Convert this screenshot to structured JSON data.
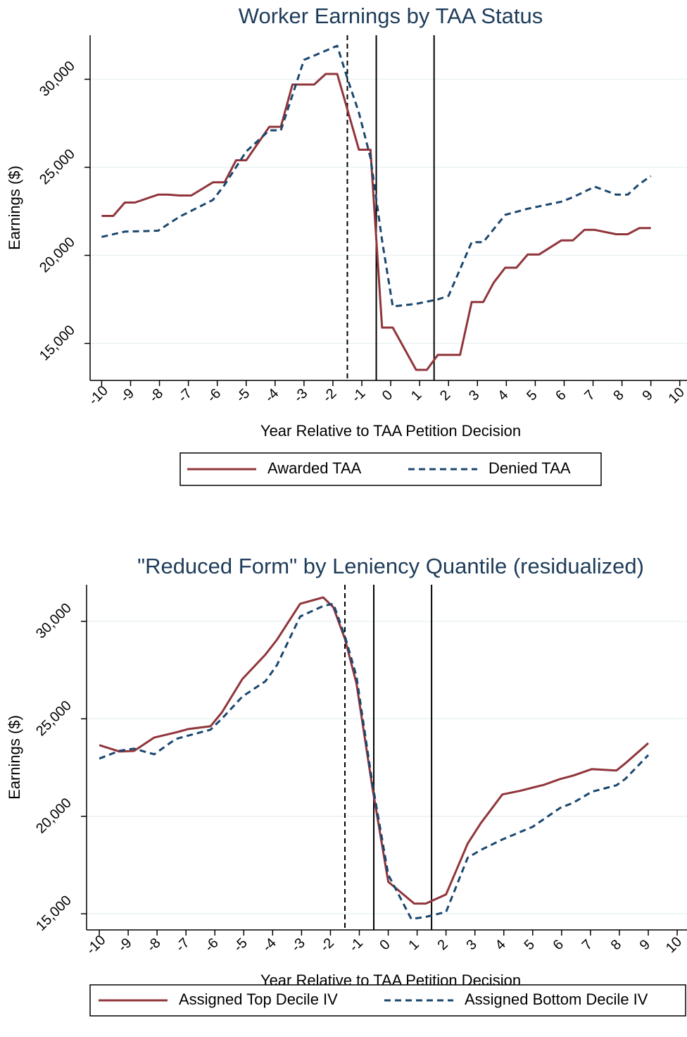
{
  "chart_data": [
    {
      "type": "line",
      "title": "Worker Earnings by TAA Status",
      "x_label": "Year Relative to TAA Petition Decision",
      "y_label": "Earnings ($)",
      "xlim": [
        -10.4,
        10.25
      ],
      "xticks": [
        -10,
        -9,
        -8,
        -7,
        -6,
        -5,
        -4,
        -3,
        -2,
        -1,
        0,
        1,
        2,
        3,
        4,
        5,
        6,
        7,
        8,
        9,
        10
      ],
      "ylim": [
        12900,
        32500
      ],
      "yticks": [
        {
          "value": 15000,
          "label": "15,000"
        },
        {
          "value": 20000,
          "label": "20,000"
        },
        {
          "value": 25000,
          "label": "25,000"
        },
        {
          "value": 30000,
          "label": "30,000"
        }
      ],
      "grid": true,
      "legend": "bottom",
      "vlines": [
        -1.5,
        -0.5,
        1.5
      ],
      "vline_dashed": [
        true,
        false,
        false
      ],
      "series": [
        {
          "name": "Awarded TAA",
          "color": "#90353b",
          "dashed": false,
          "x": [
            -10,
            -9.6,
            -9.2,
            -8.85,
            -8.05,
            -7.7,
            -7.3,
            -6.9,
            -6.15,
            -5.75,
            -5.35,
            -5,
            -4.2,
            -3.8,
            -3.4,
            -2.65,
            -2.25,
            -1.85,
            -1.1,
            -0.7,
            -0.3,
            0.07,
            0.88,
            1.25,
            1.63,
            2.4,
            2.8,
            3.2,
            3.56,
            3.96,
            4.35,
            4.74,
            5.13,
            5.9,
            6.3,
            6.7,
            7.06,
            7.8,
            8.2,
            8.6,
            9
          ],
          "values": [
            22240,
            22240,
            23000,
            23000,
            23450,
            23450,
            23400,
            23400,
            24150,
            24150,
            25400,
            25400,
            27300,
            27300,
            29700,
            29700,
            30300,
            30300,
            26000,
            26000,
            15900,
            15900,
            13500,
            13500,
            14350,
            14350,
            17350,
            17350,
            18450,
            19300,
            19300,
            20050,
            20050,
            20850,
            20850,
            21450,
            21450,
            21200,
            21200,
            21550,
            21550
          ]
        },
        {
          "name": "Denied TAA",
          "color": "#1a476f",
          "dashed": true,
          "x": [
            -10,
            -9.2,
            -8.05,
            -7.3,
            -6.15,
            -5.75,
            -5,
            -4.2,
            -3.8,
            -3,
            -1.85,
            -1.5,
            -1.1,
            -0.7,
            -0.3,
            0.07,
            0.88,
            1.63,
            2,
            2.8,
            3.2,
            3.96,
            4.74,
            5.9,
            6.3,
            7.06,
            7.8,
            8.2,
            8.6,
            9
          ],
          "values": [
            21050,
            21350,
            21400,
            22200,
            23150,
            24000,
            25900,
            27100,
            27100,
            31100,
            31900,
            30050,
            28100,
            25550,
            20850,
            17100,
            17250,
            17500,
            17700,
            20750,
            20750,
            22300,
            22650,
            23050,
            23300,
            23900,
            23450,
            23450,
            24050,
            24500
          ]
        }
      ]
    },
    {
      "type": "line",
      "title": "\"Reduced Form\" by Leniency Quantile (residualized)",
      "x_label": "Year Relative to TAA Petition Decision",
      "y_label": "Earnings ($)",
      "xlim": [
        -10.44,
        10.34
      ],
      "xticks": [
        -10,
        -9,
        -8,
        -7,
        -6,
        -5,
        -4,
        -3,
        -2,
        -1,
        0,
        1,
        2,
        3,
        4,
        5,
        6,
        7,
        8,
        9,
        10
      ],
      "ylim": [
        14170,
        31880
      ],
      "yticks": [
        {
          "value": 15000,
          "label": "15,000"
        },
        {
          "value": 20000,
          "label": "20,000"
        },
        {
          "value": 25000,
          "label": "25,000"
        },
        {
          "value": 30000,
          "label": "30,000"
        }
      ],
      "grid": true,
      "legend": "bottom",
      "vlines": [
        -1.5,
        -0.5,
        1.5
      ],
      "vline_dashed": [
        true,
        false,
        false
      ],
      "series": [
        {
          "name": "Assigned Top Decile IV",
          "color": "#90353b",
          "dashed": false,
          "x": [
            -10,
            -9.3,
            -8.8,
            -8.1,
            -7.35,
            -6.9,
            -6.15,
            -5.75,
            -5.05,
            -4.25,
            -3.85,
            -3.05,
            -2.25,
            -1.9,
            -1.5,
            -1.1,
            -0.55,
            0,
            0.9,
            1.3,
            2,
            2.75,
            3.2,
            3.95,
            4.55,
            5.4,
            5.95,
            6.4,
            7.05,
            7.9,
            8.2,
            9
          ],
          "values": [
            23650,
            23320,
            23350,
            24040,
            24300,
            24480,
            24620,
            25340,
            27040,
            28300,
            29060,
            30900,
            31230,
            30720,
            29100,
            26820,
            21480,
            16640,
            15520,
            15520,
            15990,
            18600,
            19640,
            21120,
            21300,
            21620,
            21910,
            22090,
            22420,
            22350,
            22710,
            23750
          ]
        },
        {
          "name": "Assigned Bottom Decile IV",
          "color": "#1a476f",
          "dashed": true,
          "x": [
            -10,
            -9.3,
            -8.8,
            -8.1,
            -7.35,
            -6.9,
            -6.15,
            -5.75,
            -5.05,
            -4.25,
            -3.85,
            -3.05,
            -2.25,
            -1.9,
            -1.5,
            -1.1,
            -0.55,
            0,
            0.8,
            1.3,
            2,
            2.75,
            3.2,
            3.95,
            5,
            5.95,
            6.4,
            7.05,
            7.9,
            8.2,
            9
          ],
          "values": [
            22960,
            23360,
            23470,
            23180,
            23970,
            24150,
            24440,
            25020,
            26140,
            26930,
            27760,
            30250,
            30790,
            30900,
            29240,
            27180,
            21700,
            17000,
            14730,
            14840,
            15090,
            17870,
            18270,
            18810,
            19460,
            20430,
            20690,
            21260,
            21590,
            21910,
            23140
          ]
        }
      ]
    }
  ]
}
